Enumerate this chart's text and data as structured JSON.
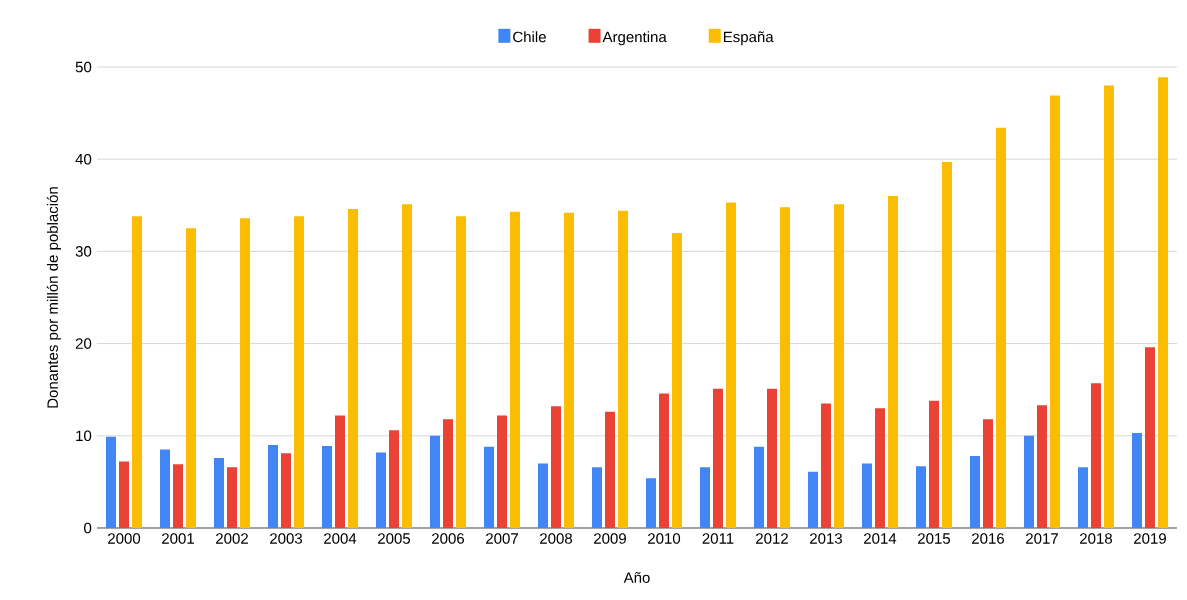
{
  "chart_data": {
    "type": "bar",
    "xlabel": "Año",
    "ylabel": "Donantes por millón de población",
    "categories": [
      "2000",
      "2001",
      "2002",
      "2003",
      "2004",
      "2005",
      "2006",
      "2007",
      "2008",
      "2009",
      "2010",
      "2011",
      "2012",
      "2013",
      "2014",
      "2015",
      "2016",
      "2017",
      "2018",
      "2019"
    ],
    "series": [
      {
        "name": "Chile",
        "color": "#4285f4",
        "values": [
          9.9,
          8.5,
          7.6,
          9.0,
          8.9,
          8.2,
          10.0,
          8.8,
          7.0,
          6.6,
          5.4,
          6.6,
          8.8,
          6.1,
          7.0,
          6.7,
          7.8,
          10.0,
          6.6,
          10.3
        ]
      },
      {
        "name": "Argentina",
        "color": "#ea4335",
        "values": [
          7.2,
          6.9,
          6.6,
          8.1,
          12.2,
          10.6,
          11.8,
          12.2,
          13.2,
          12.6,
          14.6,
          15.1,
          15.1,
          13.5,
          13.0,
          13.8,
          11.8,
          13.3,
          15.7,
          19.6
        ]
      },
      {
        "name": "España",
        "color": "#fbbc04",
        "values": [
          33.8,
          32.5,
          33.6,
          33.8,
          34.6,
          35.1,
          33.8,
          34.3,
          34.2,
          34.4,
          32.0,
          35.3,
          34.8,
          35.1,
          36.0,
          39.7,
          43.4,
          46.9,
          48.0,
          48.9
        ]
      }
    ],
    "ylim": [
      0,
      50
    ],
    "yticks": [
      0,
      10,
      20,
      30,
      40,
      50
    ],
    "grid": "y",
    "legend": "top"
  }
}
